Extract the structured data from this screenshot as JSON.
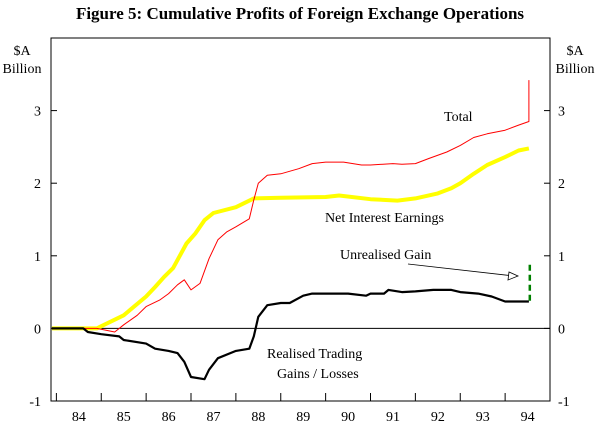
{
  "chart_data": {
    "type": "line",
    "title": "Figure 5: Cumulative Profits of Foreign Exchange Operations",
    "ylabel_left": [
      "$A",
      "Billion"
    ],
    "ylabel_right": [
      "$A",
      "Billion"
    ],
    "xlabel": "",
    "xlim": [
      83.88,
      95.0
    ],
    "ylim": [
      -1,
      4
    ],
    "yticks": [
      -1,
      0,
      1,
      2,
      3
    ],
    "xtick_labels": [
      "84",
      "85",
      "86",
      "87",
      "88",
      "89",
      "90",
      "91",
      "92",
      "93",
      "94"
    ],
    "grid": false,
    "series": [
      {
        "name": "Net Interest Earnings",
        "color": "#ffff00",
        "points": [
          [
            83.9,
            0
          ],
          [
            84.9,
            0
          ],
          [
            85.0,
            0.03
          ],
          [
            85.5,
            0.18
          ],
          [
            86.0,
            0.44
          ],
          [
            86.2,
            0.57
          ],
          [
            86.4,
            0.71
          ],
          [
            86.6,
            0.83
          ],
          [
            86.9,
            1.17
          ],
          [
            87.1,
            1.31
          ],
          [
            87.3,
            1.49
          ],
          [
            87.5,
            1.59
          ],
          [
            88.0,
            1.67
          ],
          [
            88.4,
            1.79
          ],
          [
            89.0,
            1.8
          ],
          [
            90.0,
            1.81
          ],
          [
            90.3,
            1.83
          ],
          [
            91.0,
            1.78
          ],
          [
            91.6,
            1.76
          ],
          [
            92.0,
            1.79
          ],
          [
            92.5,
            1.86
          ],
          [
            92.8,
            1.93
          ],
          [
            93.0,
            2.0
          ],
          [
            93.3,
            2.13
          ],
          [
            93.6,
            2.25
          ],
          [
            94.0,
            2.36
          ],
          [
            94.3,
            2.45
          ],
          [
            94.53,
            2.48
          ]
        ]
      },
      {
        "name": "Total",
        "color": "#ff0000",
        "points": [
          [
            83.9,
            0
          ],
          [
            84.9,
            0
          ],
          [
            85.3,
            -0.05
          ],
          [
            85.5,
            0.05
          ],
          [
            85.8,
            0.18
          ],
          [
            86.0,
            0.3
          ],
          [
            86.3,
            0.39
          ],
          [
            86.5,
            0.48
          ],
          [
            86.7,
            0.6
          ],
          [
            86.85,
            0.67
          ],
          [
            87.0,
            0.53
          ],
          [
            87.2,
            0.62
          ],
          [
            87.4,
            0.96
          ],
          [
            87.6,
            1.22
          ],
          [
            87.8,
            1.33
          ],
          [
            88.0,
            1.4
          ],
          [
            88.3,
            1.51
          ],
          [
            88.4,
            1.77
          ],
          [
            88.5,
            2.0
          ],
          [
            88.7,
            2.11
          ],
          [
            89.0,
            2.13
          ],
          [
            89.4,
            2.2
          ],
          [
            89.7,
            2.27
          ],
          [
            90.0,
            2.29
          ],
          [
            90.4,
            2.29
          ],
          [
            90.8,
            2.25
          ],
          [
            91.0,
            2.25
          ],
          [
            91.5,
            2.27
          ],
          [
            91.7,
            2.26
          ],
          [
            92.0,
            2.27
          ],
          [
            92.3,
            2.34
          ],
          [
            92.7,
            2.43
          ],
          [
            93.0,
            2.52
          ],
          [
            93.3,
            2.63
          ],
          [
            93.6,
            2.68
          ],
          [
            94.0,
            2.73
          ],
          [
            94.3,
            2.8
          ],
          [
            94.53,
            2.85
          ],
          [
            94.53,
            3.42
          ]
        ]
      },
      {
        "name": "Realised Trading Gains / Losses",
        "color": "#000000",
        "points": [
          [
            83.9,
            0
          ],
          [
            84.6,
            0
          ],
          [
            84.7,
            -0.05
          ],
          [
            85.0,
            -0.08
          ],
          [
            85.4,
            -0.11
          ],
          [
            85.5,
            -0.16
          ],
          [
            86.0,
            -0.21
          ],
          [
            86.2,
            -0.28
          ],
          [
            86.5,
            -0.31
          ],
          [
            86.7,
            -0.34
          ],
          [
            86.85,
            -0.46
          ],
          [
            87.0,
            -0.67
          ],
          [
            87.3,
            -0.7
          ],
          [
            87.4,
            -0.57
          ],
          [
            87.6,
            -0.41
          ],
          [
            88.0,
            -0.31
          ],
          [
            88.3,
            -0.28
          ],
          [
            88.4,
            -0.11
          ],
          [
            88.5,
            0.16
          ],
          [
            88.7,
            0.32
          ],
          [
            89.0,
            0.35
          ],
          [
            89.2,
            0.35
          ],
          [
            89.5,
            0.45
          ],
          [
            89.7,
            0.48
          ],
          [
            90.4,
            0.48
          ],
          [
            90.5,
            0.48
          ],
          [
            90.9,
            0.45
          ],
          [
            91.0,
            0.48
          ],
          [
            91.3,
            0.48
          ],
          [
            91.4,
            0.53
          ],
          [
            91.7,
            0.5
          ],
          [
            92.0,
            0.51
          ],
          [
            92.4,
            0.53
          ],
          [
            92.8,
            0.53
          ],
          [
            93.0,
            0.5
          ],
          [
            93.4,
            0.48
          ],
          [
            93.7,
            0.44
          ],
          [
            94.0,
            0.37
          ],
          [
            94.53,
            0.37
          ]
        ]
      },
      {
        "name": "Unrealised Gain",
        "color": "#008000",
        "style": "dashed",
        "points": [
          [
            94.55,
            0.38
          ],
          [
            94.55,
            0.93
          ]
        ]
      }
    ],
    "annotations": {
      "total": "Total",
      "net_interest": "Net Interest Earnings",
      "unrealised": "Unrealised Gain",
      "realised_1": "Realised Trading",
      "realised_2": "Gains / Losses"
    }
  }
}
